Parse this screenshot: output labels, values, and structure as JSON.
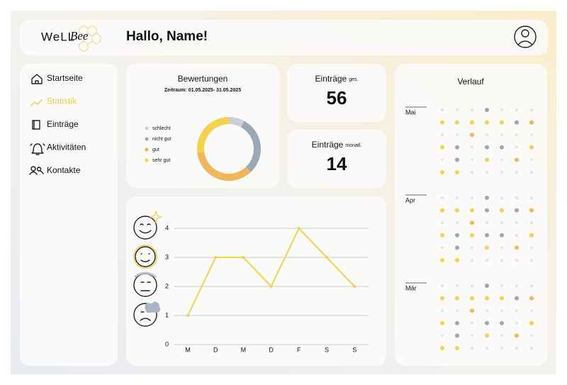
{
  "header": {
    "logo_left": "WeLL",
    "logo_right": "Bee",
    "greeting": "Hallo, Name!"
  },
  "nav": {
    "items": [
      "Startseite",
      "Statistik",
      "Einträge",
      "Aktivitäten",
      "Kontakte"
    ],
    "active": 1,
    "active_color": "#f2c94c"
  },
  "ratings": {
    "type": "pie",
    "title": "Bewertungen",
    "subtitle": "Zeitraum: 01.05.2025- 31.05.2025",
    "series": [
      {
        "name": "schlecht",
        "color": "#c9cfd7",
        "value": 8
      },
      {
        "name": "nicht gut",
        "color": "#9aa8b8",
        "value": 30
      },
      {
        "name": "gut",
        "color": "#f2b65a",
        "value": 35
      },
      {
        "name": "sehr gut",
        "color": "#f5d24c",
        "value": 27
      }
    ]
  },
  "stats": [
    {
      "label": "Einträge",
      "suffix": "ges.",
      "value": 56
    },
    {
      "label": "Einträge",
      "suffix": "monatl.",
      "value": 14
    }
  ],
  "mood_chart": {
    "type": "line",
    "categories": [
      "M",
      "D",
      "M",
      "D",
      "F",
      "S",
      "S"
    ],
    "values": [
      1,
      3,
      3,
      2,
      4,
      3,
      2
    ],
    "ylim": [
      0,
      4
    ],
    "yticks": [
      0,
      1,
      2,
      3,
      4
    ],
    "color": "#f5d24c",
    "grid": true
  },
  "history": {
    "title": "Verlauf",
    "empty_color": "#e2e3e5",
    "months": [
      {
        "name": "Mai",
        "rows": [
          [
            0,
            0,
            0,
            2,
            0,
            0,
            0
          ],
          [
            4,
            4,
            4,
            4,
            4,
            2,
            3
          ],
          [
            0,
            0,
            3,
            0,
            0,
            0,
            0
          ],
          [
            4,
            2,
            0,
            2,
            2,
            0,
            4
          ],
          [
            0,
            2,
            0,
            4,
            0,
            3,
            0
          ],
          [
            4,
            4,
            0,
            0,
            0,
            0,
            0
          ]
        ]
      },
      {
        "name": "Apr",
        "rows": [
          [
            0,
            0,
            0,
            2,
            0,
            0,
            0
          ],
          [
            4,
            4,
            4,
            2,
            4,
            2,
            3
          ],
          [
            0,
            0,
            3,
            0,
            0,
            0,
            0
          ],
          [
            4,
            2,
            4,
            2,
            2,
            0,
            4
          ],
          [
            0,
            2,
            0,
            4,
            0,
            3,
            0
          ],
          [
            4,
            4,
            0,
            0,
            0,
            0,
            0
          ]
        ]
      },
      {
        "name": "Mär",
        "rows": [
          [
            0,
            0,
            0,
            2,
            0,
            0,
            0
          ],
          [
            4,
            4,
            4,
            4,
            4,
            2,
            3
          ],
          [
            0,
            0,
            3,
            0,
            0,
            0,
            0
          ],
          [
            4,
            2,
            0,
            2,
            2,
            0,
            4
          ],
          [
            0,
            2,
            0,
            4,
            0,
            3,
            0
          ],
          [
            4,
            4,
            0,
            0,
            0,
            0,
            0
          ]
        ]
      }
    ]
  }
}
